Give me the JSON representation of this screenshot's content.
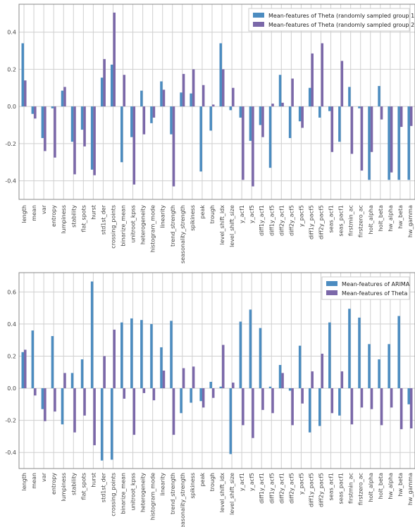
{
  "chart_data": [
    {
      "type": "bar",
      "title": "",
      "xlabel": "",
      "ylabel": "",
      "ylim": [
        -0.5,
        0.55
      ],
      "yticks": [
        -0.4,
        -0.2,
        0.0,
        0.2,
        0.4
      ],
      "ytick_labels": [
        "-0.4",
        "-0.2",
        "0.0",
        "0.2",
        "0.4"
      ],
      "grid": true,
      "legend_position": "top-right",
      "categories": [
        "length",
        "mean",
        "var",
        "entropy",
        "lumpiness",
        "stability",
        "flat_spots",
        "hurst",
        "std1st_der",
        "crossing_points",
        "binarize_mean",
        "unitroot_kpss",
        "heterogeneity",
        "histogram_mode",
        "linearity",
        "trend_strength",
        "seasonality_strength",
        "spikiness",
        "peak",
        "trough",
        "level_shift_idx",
        "level_shift_size",
        "y_acf1",
        "y_acf5",
        "diff1y_acf1",
        "diff1y_acf5",
        "diff2y_acf1",
        "diff2y_acf5",
        "y_pacf5",
        "diff1y_pacf5",
        "diff2y_pacf5",
        "seas_acf1",
        "seas_pacf1",
        "firstmin_ac",
        "firstzero_ac",
        "holt_alpha",
        "holt_beta",
        "hw_alpha",
        "hw_beta",
        "hw_gamma"
      ],
      "series": [
        {
          "name": "Mean-features of Theta (randomly sampled group 1)",
          "color": "#4c8cc0",
          "values": [
            0.34,
            -0.04,
            -0.17,
            -0.01,
            0.085,
            -0.19,
            -0.125,
            -0.34,
            0.155,
            0.225,
            -0.3,
            -0.165,
            0.085,
            -0.09,
            0.135,
            -0.15,
            0.075,
            0.07,
            -0.35,
            -0.13,
            0.34,
            -0.02,
            -0.06,
            -0.185,
            -0.1,
            -0.33,
            0.17,
            -0.17,
            -0.08,
            0.1,
            -0.06,
            -0.025,
            -0.19,
            0.105,
            -0.01,
            -0.395,
            0.11,
            -0.395,
            -0.395,
            -0.395
          ]
        },
        {
          "name": "Mean-features of Theta (randomly sampled group 2)",
          "color": "#7b68a9",
          "values": [
            0.14,
            -0.065,
            -0.24,
            -0.275,
            0.105,
            -0.365,
            -0.215,
            -0.37,
            0.255,
            0.505,
            0.17,
            -0.42,
            -0.15,
            -0.06,
            0.09,
            -0.43,
            0.175,
            0.2,
            0.115,
            0.01,
            0.2,
            0.1,
            -0.395,
            -0.43,
            -0.165,
            0.015,
            0.02,
            0.15,
            -0.115,
            0.285,
            0.34,
            -0.245,
            0.245,
            -0.255,
            -0.345,
            -0.245,
            -0.07,
            -0.355,
            -0.11,
            -0.105
          ]
        }
      ]
    },
    {
      "type": "bar",
      "title": "",
      "xlabel": "",
      "ylabel": "",
      "ylim": [
        -0.5,
        0.72
      ],
      "yticks": [
        -0.4,
        -0.2,
        0.0,
        0.2,
        0.4,
        0.6
      ],
      "ytick_labels": [
        "-0.4",
        "-0.2",
        "0.0",
        "0.2",
        "0.4",
        "0.6"
      ],
      "grid": true,
      "legend_position": "top-right",
      "categories": [
        "length",
        "mean",
        "var",
        "entropy",
        "lumpiness",
        "stability",
        "flat_spots",
        "hurst",
        "std1st_der",
        "crossing_points",
        "binarize_mean",
        "unitroot_kpss",
        "heterogeneity",
        "histogram_mode",
        "linearity",
        "trend_strength",
        "seasonality_strength",
        "spikiness",
        "peak",
        "trough",
        "level_shift_idx",
        "level_shift_size",
        "y_acf1",
        "y_acf5",
        "diff1y_acf1",
        "diff1y_acf5",
        "diff2y_acf1",
        "diff2y_acf5",
        "y_pacf5",
        "diff1y_pacf5",
        "diff2y_pacf5",
        "seas_acf1",
        "seas_pacf1",
        "firstmin_ac",
        "firstzero_ac",
        "holt_alpha",
        "holt_beta",
        "hw_alpha",
        "hw_beta",
        "hw_gamma"
      ],
      "series": [
        {
          "name": "Mean-features of ARIMA",
          "color": "#4c8cc0",
          "values": [
            0.225,
            0.36,
            -0.13,
            0.325,
            -0.225,
            0.095,
            0.18,
            0.665,
            -0.45,
            -0.445,
            0.41,
            0.435,
            0.425,
            0.4,
            0.255,
            0.42,
            -0.155,
            -0.09,
            -0.08,
            0.04,
            0.01,
            -0.41,
            0.415,
            0.49,
            0.375,
            0.01,
            0.145,
            -0.015,
            0.265,
            -0.275,
            -0.235,
            0.41,
            -0.17,
            0.495,
            0.44,
            0.275,
            0.18,
            0.275,
            0.45,
            -0.1
          ]
        },
        {
          "name": "Mean-features of Theta",
          "color": "#7b68a9",
          "values": [
            0.24,
            -0.045,
            -0.205,
            -0.145,
            0.095,
            -0.275,
            -0.17,
            -0.355,
            0.2,
            0.365,
            -0.065,
            -0.29,
            -0.03,
            -0.075,
            0.11,
            -0.29,
            0.125,
            0.135,
            -0.12,
            -0.06,
            0.27,
            0.035,
            -0.23,
            -0.31,
            -0.135,
            -0.155,
            0.095,
            -0.23,
            -0.095,
            0.105,
            0.215,
            -0.155,
            0.105,
            -0.225,
            -0.12,
            -0.13,
            -0.23,
            -0.12,
            -0.255,
            -0.25
          ]
        }
      ]
    }
  ]
}
